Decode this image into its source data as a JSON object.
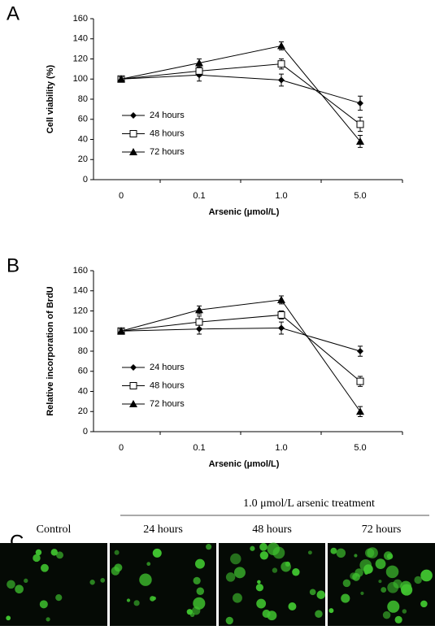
{
  "chart_data": [
    {
      "type": "line",
      "panel": "A",
      "y_label": "Cell viability (%)",
      "x_label": "Arsenic (μmol/L)",
      "categories": [
        "0",
        "0.1",
        "1.0",
        "5.0"
      ],
      "ylim": [
        0,
        160
      ],
      "yticks": [
        0,
        20,
        40,
        60,
        80,
        100,
        120,
        140,
        160
      ],
      "series": [
        {
          "name": "24 hours",
          "color": "#000000",
          "marker": "diamond",
          "values": [
            100,
            104,
            99,
            76
          ],
          "errors": [
            3,
            6,
            6,
            7
          ]
        },
        {
          "name": "48 hours",
          "color": "#000000",
          "marker": "open-square",
          "values": [
            100,
            108,
            115,
            55
          ],
          "errors": [
            2,
            5,
            5,
            7
          ]
        },
        {
          "name": "72 hours",
          "color": "#000000",
          "marker": "triangle",
          "values": [
            100,
            116,
            133,
            38
          ],
          "errors": [
            2,
            4,
            4,
            6
          ]
        }
      ]
    },
    {
      "type": "line",
      "panel": "B",
      "y_label": "Relative incorporation of BrdU",
      "x_label": "Arsenic (μmol/L)",
      "categories": [
        "0",
        "0.1",
        "1.0",
        "5.0"
      ],
      "ylim": [
        0,
        160
      ],
      "yticks": [
        0,
        20,
        40,
        60,
        80,
        100,
        120,
        140,
        160
      ],
      "series": [
        {
          "name": "24 hours",
          "color": "#000000",
          "marker": "diamond",
          "values": [
            100,
            102,
            103,
            80
          ],
          "errors": [
            3,
            5,
            6,
            5
          ]
        },
        {
          "name": "48 hours",
          "color": "#000000",
          "marker": "open-square",
          "values": [
            100,
            109,
            116,
            50
          ],
          "errors": [
            2,
            6,
            4,
            5
          ]
        },
        {
          "name": "72 hours",
          "color": "#000000",
          "marker": "triangle",
          "values": [
            100,
            121,
            131,
            20
          ],
          "errors": [
            2,
            4,
            4,
            5
          ]
        }
      ]
    }
  ],
  "panel_c": {
    "label": "C",
    "heading": "1.0 μmol/L arsenic treatment",
    "images": [
      "Control",
      "24 hours",
      "48 hours",
      "72 hours"
    ]
  }
}
